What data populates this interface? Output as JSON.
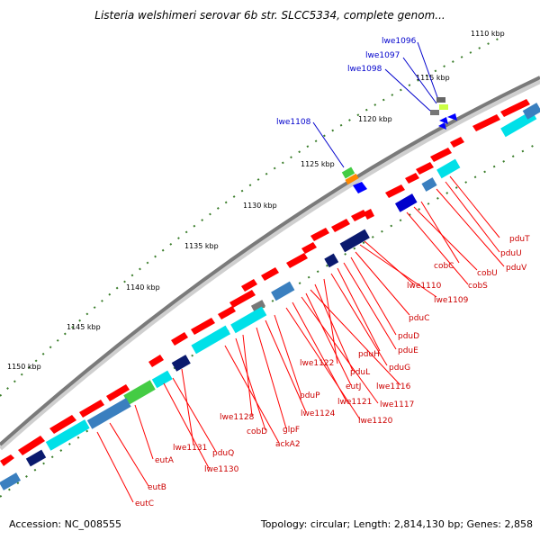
{
  "title": "Listeria welshimeri serovar 6b str. SLCC5334, complete genom...",
  "footer": {
    "accession": "Accession: NC_008555",
    "summary": "Topology: circular; Length: 2,814,130 bp; Genes: 2,858"
  },
  "ticks": [
    "1110 kbp",
    "1115 kbp",
    "1120 kbp",
    "1125 kbp",
    "1130 kbp",
    "1135 kbp",
    "1140 kbp",
    "1145 kbp",
    "1150 kbp"
  ],
  "gene_labels_blue": [
    "lwe1096",
    "lwe1097",
    "lwe1098",
    "lwe1108"
  ],
  "gene_labels_red": [
    "pduT",
    "pduU",
    "pduV",
    "cobC",
    "cobU",
    "cobS",
    "lwe1110",
    "lwe1109",
    "pduC",
    "pduD",
    "pduE",
    "pduH",
    "pduG",
    "lwe1122",
    "pduL",
    "lwe1116",
    "eutJ",
    "lwe1117",
    "lwe1121",
    "lwe1120",
    "pduP",
    "lwe1124",
    "glpF",
    "lwe1128",
    "cobD",
    "ackA2",
    "lwe1131",
    "pduQ",
    "eutA",
    "lwe1130",
    "eutB",
    "eutC"
  ],
  "colors": {
    "forward_gene": "#ff0000",
    "reverse_gene": "#0000ff",
    "backbone": "#808080",
    "blue_label": "#0000cc",
    "red_label": "#cc0000"
  }
}
